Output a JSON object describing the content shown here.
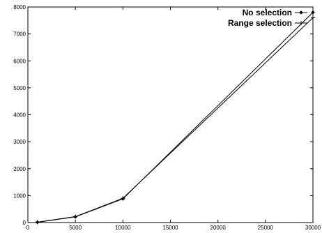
{
  "chart_data": {
    "type": "line",
    "title": "",
    "xlabel": "",
    "ylabel": "",
    "xlim": [
      0,
      30000
    ],
    "ylim": [
      0,
      8000
    ],
    "x_ticks": [
      0,
      5000,
      10000,
      15000,
      20000,
      25000,
      30000
    ],
    "y_ticks": [
      0,
      1000,
      2000,
      3000,
      4000,
      5000,
      6000,
      7000,
      8000
    ],
    "x_tick_labels": [
      "0",
      "5000",
      "10000",
      "15000",
      "20000",
      "25000",
      "30000"
    ],
    "y_tick_labels": [
      "0",
      "1000",
      "2000",
      "3000",
      "4000",
      "5000",
      "6000",
      "7000",
      "8000"
    ],
    "grid": false,
    "legend_position": "top-right",
    "series": [
      {
        "name": "No selection",
        "marker": "diamond",
        "color": "#000000",
        "x": [
          1000,
          5000,
          10000,
          30000
        ],
        "y": [
          10,
          210,
          880,
          7800
        ]
      },
      {
        "name": "Range selection",
        "marker": "plus",
        "color": "#000000",
        "x": [
          1000,
          5000,
          10000,
          30000
        ],
        "y": [
          15,
          220,
          900,
          7600
        ]
      }
    ]
  }
}
